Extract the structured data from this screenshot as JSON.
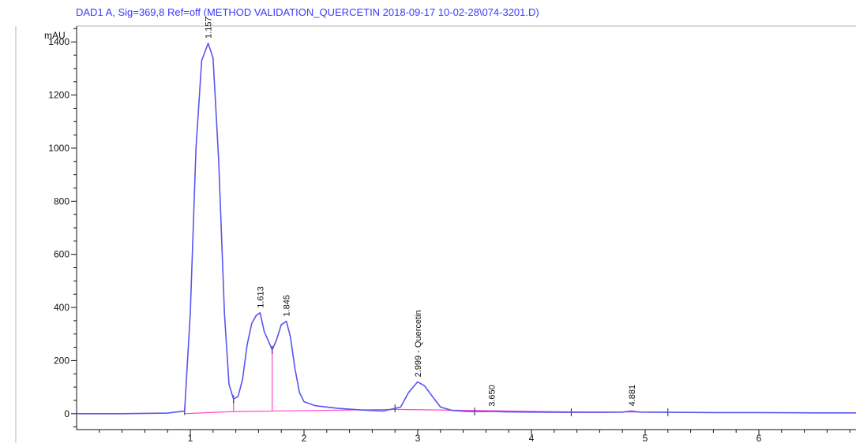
{
  "chart_data": {
    "type": "line",
    "title": "DAD1 A, Sig=369,8 Ref=off (METHOD VALIDATION_QUERCETIN 2018-09-17 10-02-28\\074-3201.D)",
    "ylabel": "mAU",
    "xlabel": "",
    "x_ticks": [
      1,
      2,
      3,
      4,
      5,
      6
    ],
    "y_ticks": [
      0,
      200,
      400,
      600,
      800,
      1000,
      1200,
      1400
    ],
    "xlim": [
      0,
      7.0
    ],
    "ylim": [
      -60,
      1460
    ],
    "series": [
      {
        "x": [
          0.0,
          0.4,
          0.8,
          0.95,
          1.0,
          1.05,
          1.1,
          1.157,
          1.2,
          1.25,
          1.3,
          1.34,
          1.38,
          1.42,
          1.46,
          1.5,
          1.54,
          1.58,
          1.613,
          1.65,
          1.7,
          1.72,
          1.76,
          1.8,
          1.845,
          1.88,
          1.92,
          1.96,
          2.0,
          2.1,
          2.3,
          2.5,
          2.7,
          2.85,
          2.92,
          2.999,
          3.06,
          3.12,
          3.2,
          3.3,
          3.45,
          3.6,
          3.65,
          3.75,
          4.0,
          4.3,
          4.6,
          4.8,
          4.881,
          4.95,
          5.2,
          5.6,
          6.0,
          6.5,
          7.0
        ],
        "y": [
          0,
          0,
          2,
          10,
          380,
          1000,
          1330,
          1395,
          1340,
          950,
          380,
          110,
          55,
          65,
          130,
          260,
          340,
          370,
          380,
          310,
          260,
          240,
          280,
          335,
          348,
          290,
          170,
          80,
          45,
          30,
          20,
          14,
          10,
          25,
          80,
          120,
          105,
          70,
          25,
          12,
          8,
          8,
          9,
          7,
          6,
          5,
          5,
          6,
          10,
          6,
          5,
          4,
          4,
          3,
          3
        ]
      }
    ],
    "peak_labels": [
      {
        "rt": 1.157,
        "label": "1.157"
      },
      {
        "rt": 1.613,
        "label": "1.613"
      },
      {
        "rt": 1.845,
        "label": "1.845"
      },
      {
        "rt": 2.999,
        "label": "2.999 - Quercetin"
      },
      {
        "rt": 3.65,
        "label": "3.650"
      },
      {
        "rt": 4.881,
        "label": "4.881"
      }
    ],
    "peak_label_values": [
      1395,
      380,
      348,
      120,
      9,
      10
    ],
    "baseline_events": [
      0.95,
      1.38,
      1.72,
      2.8,
      3.5,
      4.35,
      5.2
    ],
    "colors": {
      "trace": "#5a55ee",
      "baseline": "#ff46cc",
      "title": "#3b38ff",
      "axis": "#111111"
    }
  }
}
